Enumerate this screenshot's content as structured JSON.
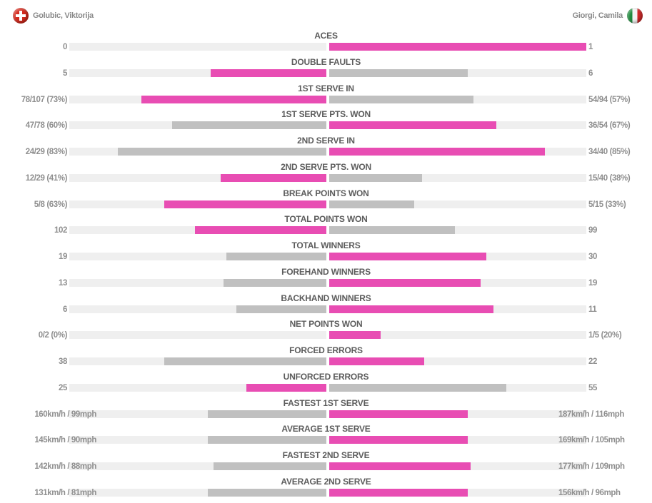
{
  "players": {
    "left": {
      "name": "Golubic, Viktorija",
      "flag": "switzerland-flag-icon"
    },
    "right": {
      "name": "Giorgi, Camila",
      "flag": "italy-flag-icon"
    }
  },
  "colors": {
    "winner": "#e84db3",
    "loser": "#c0c0c0",
    "track": "#efefef",
    "title": "#5c5c5c",
    "value": "#8f8f8f"
  },
  "chart_data": {
    "type": "bar",
    "orientation": "horizontal-diverging",
    "title": "",
    "series": [
      {
        "name": "Golubic, Viktorija",
        "side": "left"
      },
      {
        "name": "Giorgi, Camila",
        "side": "right"
      }
    ],
    "stats": [
      {
        "label": "ACES",
        "left_text": "0",
        "right_text": "1",
        "left_fraction": 0.0,
        "right_fraction": 1.0,
        "left_color": "loser",
        "right_color": "winner"
      },
      {
        "label": "DOUBLE FAULTS",
        "left_text": "5",
        "right_text": "6",
        "left_fraction": 0.45,
        "right_fraction": 0.54,
        "left_color": "winner",
        "right_color": "loser"
      },
      {
        "label": "1ST SERVE IN",
        "left_text": "78/107 (73%)",
        "right_text": "54/94 (57%)",
        "left_fraction": 0.72,
        "right_fraction": 0.56,
        "left_color": "winner",
        "right_color": "loser"
      },
      {
        "label": "1ST SERVE PTS. WON",
        "left_text": "47/78 (60%)",
        "right_text": "36/54 (67%)",
        "left_fraction": 0.6,
        "right_fraction": 0.65,
        "left_color": "loser",
        "right_color": "winner"
      },
      {
        "label": "2ND SERVE IN",
        "left_text": "24/29 (83%)",
        "right_text": "34/40 (85%)",
        "left_fraction": 0.81,
        "right_fraction": 0.84,
        "left_color": "loser",
        "right_color": "winner"
      },
      {
        "label": "2ND SERVE PTS. WON",
        "left_text": "12/29 (41%)",
        "right_text": "15/40 (38%)",
        "left_fraction": 0.41,
        "right_fraction": 0.36,
        "left_color": "winner",
        "right_color": "loser"
      },
      {
        "label": "BREAK POINTS WON",
        "left_text": "5/8 (63%)",
        "right_text": "5/15 (33%)",
        "left_fraction": 0.63,
        "right_fraction": 0.33,
        "left_color": "winner",
        "right_color": "loser"
      },
      {
        "label": "TOTAL POINTS WON",
        "left_text": "102",
        "right_text": "99",
        "left_fraction": 0.51,
        "right_fraction": 0.49,
        "left_color": "winner",
        "right_color": "loser"
      },
      {
        "label": "TOTAL WINNERS",
        "left_text": "19",
        "right_text": "30",
        "left_fraction": 0.39,
        "right_fraction": 0.61,
        "left_color": "loser",
        "right_color": "winner"
      },
      {
        "label": "FOREHAND WINNERS",
        "left_text": "13",
        "right_text": "19",
        "left_fraction": 0.4,
        "right_fraction": 0.59,
        "left_color": "loser",
        "right_color": "winner"
      },
      {
        "label": "BACKHAND WINNERS",
        "left_text": "6",
        "right_text": "11",
        "left_fraction": 0.35,
        "right_fraction": 0.64,
        "left_color": "loser",
        "right_color": "winner"
      },
      {
        "label": "NET POINTS WON",
        "left_text": "0/2 (0%)",
        "right_text": "1/5 (20%)",
        "left_fraction": 0.0,
        "right_fraction": 0.2,
        "left_color": "loser",
        "right_color": "winner"
      },
      {
        "label": "FORCED ERRORS",
        "left_text": "38",
        "right_text": "22",
        "left_fraction": 0.63,
        "right_fraction": 0.37,
        "left_color": "loser",
        "right_color": "winner"
      },
      {
        "label": "UNFORCED ERRORS",
        "left_text": "25",
        "right_text": "55",
        "left_fraction": 0.31,
        "right_fraction": 0.69,
        "left_color": "winner",
        "right_color": "loser"
      },
      {
        "label": "FASTEST 1ST SERVE",
        "left_text": "160km/h / 99mph",
        "right_text": "187km/h / 116mph",
        "left_fraction": 0.46,
        "right_fraction": 0.54,
        "left_color": "loser",
        "right_color": "winner"
      },
      {
        "label": "AVERAGE 1ST SERVE",
        "left_text": "145km/h / 90mph",
        "right_text": "169km/h / 105mph",
        "left_fraction": 0.46,
        "right_fraction": 0.54,
        "left_color": "loser",
        "right_color": "winner"
      },
      {
        "label": "FASTEST 2ND SERVE",
        "left_text": "142km/h / 88mph",
        "right_text": "177km/h / 109mph",
        "left_fraction": 0.44,
        "right_fraction": 0.55,
        "left_color": "loser",
        "right_color": "winner"
      },
      {
        "label": "AVERAGE 2ND SERVE",
        "left_text": "131km/h / 81mph",
        "right_text": "156km/h / 96mph",
        "left_fraction": 0.46,
        "right_fraction": 0.54,
        "left_color": "loser",
        "right_color": "winner"
      }
    ]
  }
}
